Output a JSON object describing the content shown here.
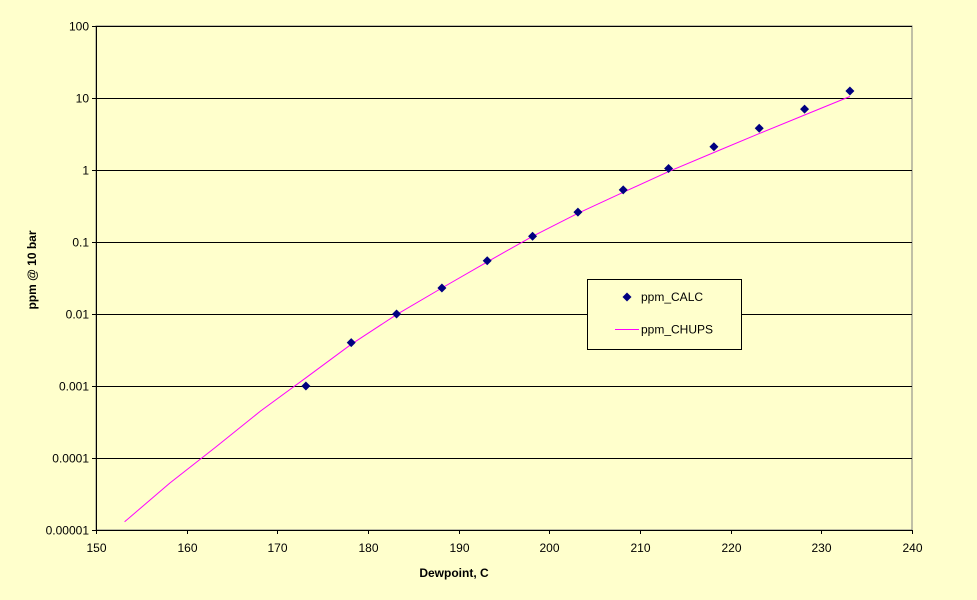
{
  "chart_data": {
    "type": "scatter",
    "title": "",
    "xlabel": "Dewpoint, C",
    "ylabel": "ppm @ 10 bar",
    "xlim": [
      150,
      240
    ],
    "ylim": [
      1e-05,
      100
    ],
    "yscale": "log",
    "x_ticks": [
      150,
      160,
      170,
      180,
      190,
      200,
      210,
      220,
      230,
      240
    ],
    "x_tick_labels": [
      "150",
      "160",
      "170",
      "180",
      "190",
      "200",
      "210",
      "220",
      "230",
      "240"
    ],
    "y_ticks": [
      1e-05,
      0.0001,
      0.001,
      0.01,
      0.1,
      1,
      10,
      100
    ],
    "y_tick_labels": [
      "0.00001",
      "0.0001",
      "0.001",
      "0.01",
      "0.1",
      "1",
      "10",
      "100"
    ],
    "grid": "horizontal-major",
    "legend_position": "center-right",
    "colors": {
      "background": "#FFFFCC",
      "plot_area": "#FFFFCC",
      "markers": "#000080",
      "curve": "#FF00FF",
      "gridlines": "#000000"
    },
    "series": [
      {
        "name": "ppm_CALC",
        "kind": "markers",
        "marker": "diamond",
        "x": [
          173.15,
          178.15,
          183.15,
          188.15,
          193.15,
          198.15,
          203.15,
          208.15,
          213.15,
          218.15,
          223.15,
          228.15,
          233.15
        ],
        "y": [
          0.001,
          0.004,
          0.01,
          0.023,
          0.055,
          0.12,
          0.26,
          0.53,
          1.05,
          2.1,
          3.8,
          7.0,
          12.5
        ]
      },
      {
        "name": "ppm_CHUPS",
        "kind": "line",
        "x": [
          153.15,
          158.15,
          163.15,
          168.15,
          173.15,
          178.15,
          183.15,
          188.15,
          193.15,
          198.15,
          203.15,
          208.15,
          213.15,
          218.15,
          223.15,
          228.15,
          233.15
        ],
        "y": [
          1.3e-05,
          4.5e-05,
          0.00014,
          0.00045,
          0.0013,
          0.0038,
          0.0098,
          0.023,
          0.053,
          0.12,
          0.25,
          0.49,
          0.95,
          1.75,
          3.2,
          5.8,
          10.5
        ]
      }
    ]
  }
}
